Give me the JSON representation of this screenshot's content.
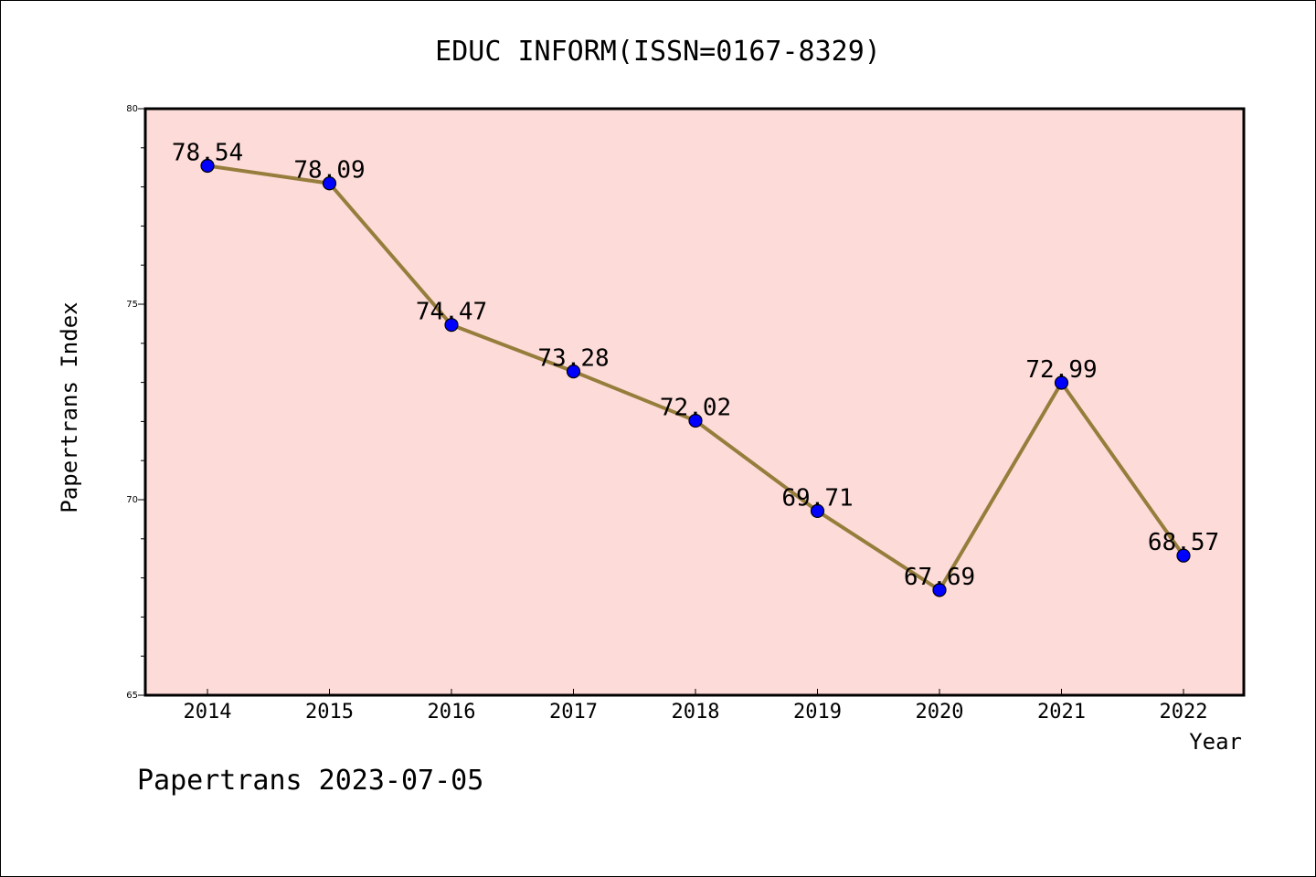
{
  "chart_data": {
    "type": "line",
    "title": "EDUC INFORM(ISSN=0167-8329)",
    "xlabel": "Year",
    "ylabel": "Papertrans Index",
    "categories": [
      "2014",
      "2015",
      "2016",
      "2017",
      "2018",
      "2019",
      "2020",
      "2021",
      "2022"
    ],
    "values": [
      78.54,
      78.09,
      74.47,
      73.28,
      72.02,
      69.71,
      67.69,
      72.99,
      68.57
    ],
    "data_labels": [
      "78.54",
      "78.09",
      "74.47",
      "73.28",
      "72.02",
      "69.71",
      "67.69",
      "72.99",
      "68.57"
    ],
    "ylim": [
      65,
      80
    ],
    "yticks": [
      65,
      70,
      75,
      80
    ],
    "ytick_labels": [
      "65",
      "70",
      "75",
      "80"
    ],
    "grid": false,
    "plot_background": "#fddbd8",
    "line_color": "#967d3c",
    "marker_color": "#0000ff"
  },
  "footer": "Papertrans 2023-07-05"
}
